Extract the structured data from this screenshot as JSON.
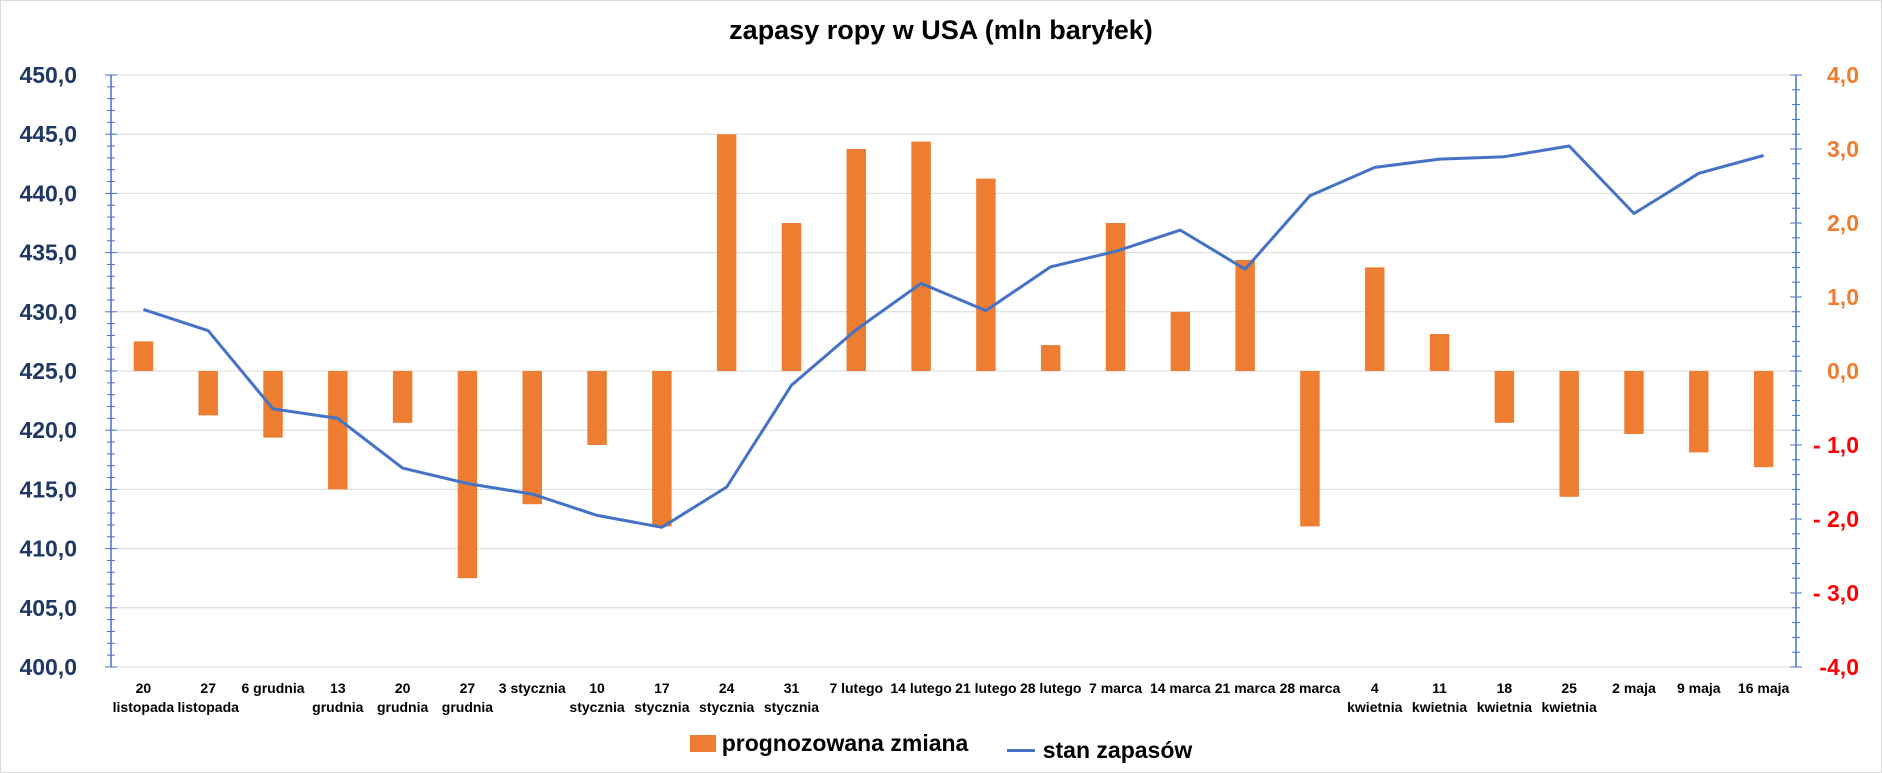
{
  "chart_data": {
    "type": "bar+line",
    "title": "zapasy ropy w USA (mln baryłek)",
    "categories": [
      [
        "20",
        "listopada"
      ],
      [
        "27",
        "listopada"
      ],
      [
        "6 grudnia"
      ],
      [
        "13",
        "grudnia"
      ],
      [
        "20",
        "grudnia"
      ],
      [
        "27",
        "grudnia"
      ],
      [
        "3 stycznia"
      ],
      [
        "10",
        "stycznia"
      ],
      [
        "17",
        "stycznia"
      ],
      [
        "24",
        "stycznia"
      ],
      [
        "31",
        "stycznia"
      ],
      [
        "7 lutego"
      ],
      [
        "14 lutego"
      ],
      [
        "21 lutego"
      ],
      [
        "28 lutego"
      ],
      [
        "7 marca"
      ],
      [
        "14 marca"
      ],
      [
        "21 marca"
      ],
      [
        "28 marca"
      ],
      [
        "4",
        "kwietnia"
      ],
      [
        "11",
        "kwietnia"
      ],
      [
        "18",
        "kwietnia"
      ],
      [
        "25",
        "kwietnia"
      ],
      [
        "2 maja"
      ],
      [
        "9 maja"
      ],
      [
        "16 maja"
      ]
    ],
    "series": [
      {
        "name": "prognozowana zmiana",
        "type": "bar",
        "axis": "right",
        "color": "#ed7d31",
        "values": [
          0.4,
          -0.6,
          -0.9,
          -1.6,
          -0.7,
          -2.8,
          -1.8,
          -1.0,
          -2.1,
          3.2,
          2.0,
          3.0,
          3.1,
          2.6,
          0.35,
          2.0,
          0.8,
          1.5,
          -2.1,
          1.4,
          0.5,
          -0.7,
          -1.7,
          -0.85,
          -1.1,
          -1.3
        ]
      },
      {
        "name": "stan zapasów",
        "type": "line",
        "axis": "left",
        "color": "#4472c4",
        "values": [
          430.2,
          428.4,
          421.8,
          421.0,
          416.8,
          415.5,
          414.6,
          412.8,
          411.8,
          415.2,
          423.8,
          428.5,
          432.4,
          430.1,
          433.8,
          435.1,
          436.9,
          433.6,
          439.8,
          442.2,
          442.9,
          443.1,
          444.0,
          438.3,
          441.7,
          443.2
        ]
      }
    ],
    "yleft": {
      "min": 400,
      "max": 450,
      "step": 5,
      "tick_labels": [
        "400,0",
        "405,0",
        "410,0",
        "415,0",
        "420,0",
        "425,0",
        "430,0",
        "435,0",
        "440,0",
        "445,0",
        "450,0"
      ],
      "color": "#1f3864"
    },
    "yright": {
      "min": -4,
      "max": 4,
      "step": 1,
      "tick_labels": [
        "-4,0",
        "- 3,0",
        "- 2,0",
        "- 1,0",
        "0,0",
        "1,0",
        "2,0",
        "3,0",
        "4,0"
      ],
      "positive_color": "#ed7d31",
      "negative_color": "#ff0000"
    },
    "grid": true,
    "legend_position": "bottom"
  }
}
